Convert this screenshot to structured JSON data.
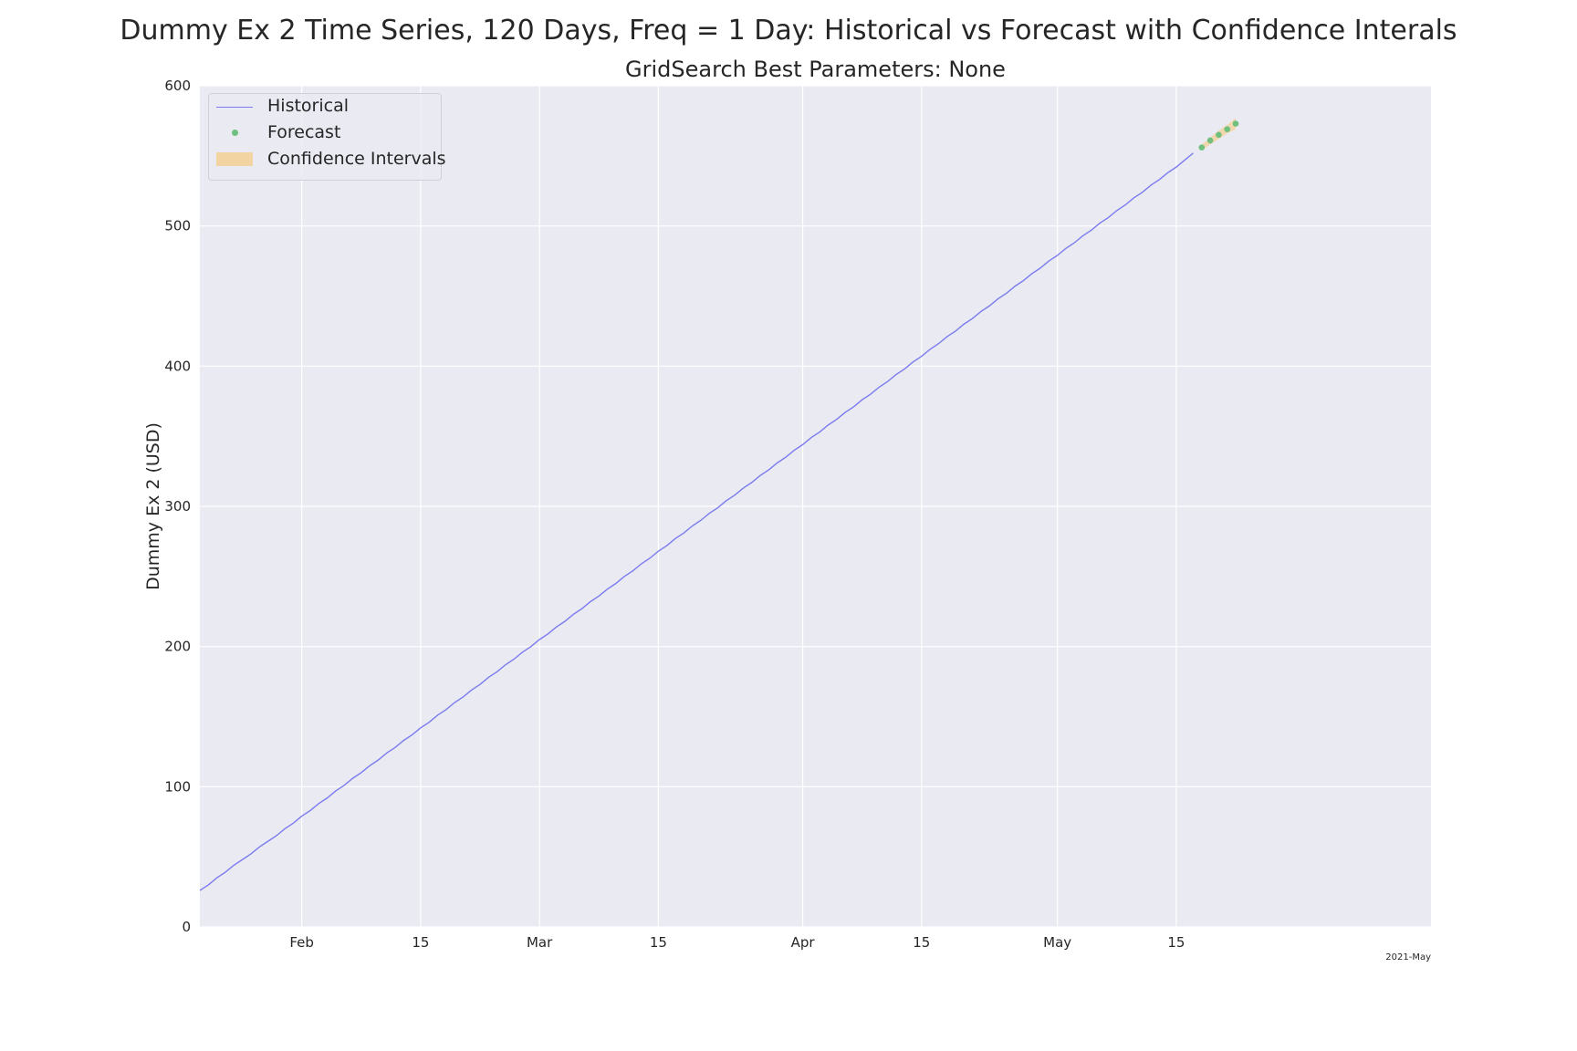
{
  "chart_data": {
    "type": "line",
    "title": "Dummy Ex 2 Time Series, 120 Days, Freq = 1 Day: Historical vs Forecast with Confidence Interals",
    "subtitle": "GridSearch Best Parameters: None",
    "ylabel": "Dummy Ex 2 (USD)",
    "xlabel": "",
    "x_range": [
      "2021-01-20",
      "2021-06-14"
    ],
    "ylim": [
      0,
      600
    ],
    "y_ticks": [
      0,
      100,
      200,
      300,
      400,
      500,
      600
    ],
    "x_ticks": [
      {
        "date": "2021-02-01",
        "label": "Feb"
      },
      {
        "date": "2021-02-15",
        "label": "15"
      },
      {
        "date": "2021-03-01",
        "label": "Mar"
      },
      {
        "date": "2021-03-15",
        "label": "15"
      },
      {
        "date": "2021-04-01",
        "label": "Apr"
      },
      {
        "date": "2021-04-15",
        "label": "15"
      },
      {
        "date": "2021-05-01",
        "label": "May"
      },
      {
        "date": "2021-05-15",
        "label": "15"
      }
    ],
    "x_axis_year_label": "2021-May",
    "grid": true,
    "legend_position": "top-left",
    "series": [
      {
        "name": "Historical",
        "style": "line",
        "color": "#7b7bef",
        "start_date": "2021-01-20",
        "step_days": 1,
        "values": [
          26,
          30,
          35,
          39,
          44,
          48,
          52,
          57,
          61,
          65,
          70,
          74,
          79,
          83,
          88,
          92,
          97,
          101,
          106,
          110,
          115,
          119,
          124,
          128,
          133,
          137,
          142,
          146,
          151,
          155,
          160,
          164,
          169,
          173,
          178,
          182,
          187,
          191,
          196,
          200,
          205,
          209,
          214,
          218,
          223,
          227,
          232,
          236,
          241,
          245,
          250,
          254,
          259,
          263,
          268,
          272,
          277,
          281,
          286,
          290,
          295,
          299,
          304,
          308,
          313,
          317,
          322,
          326,
          331,
          335,
          340,
          344,
          349,
          353,
          358,
          362,
          367,
          371,
          376,
          380,
          385,
          389,
          394,
          398,
          403,
          407,
          412,
          416,
          421,
          425,
          430,
          434,
          439,
          443,
          448,
          452,
          457,
          461,
          466,
          470,
          475,
          479,
          484,
          488,
          493,
          497,
          502,
          506,
          511,
          515,
          520,
          524,
          529,
          533,
          538,
          542,
          547,
          552
        ]
      },
      {
        "name": "Forecast",
        "style": "points",
        "color": "#6fbf7f",
        "points": [
          {
            "date": "2021-05-18",
            "value": 556
          },
          {
            "date": "2021-05-19",
            "value": 561
          },
          {
            "date": "2021-05-20",
            "value": 565
          },
          {
            "date": "2021-05-21",
            "value": 569
          },
          {
            "date": "2021-05-22",
            "value": 573
          }
        ]
      },
      {
        "name": "Confidence Intervals",
        "style": "band",
        "color": "#f2d4a2",
        "points": [
          {
            "date": "2021-05-18",
            "lower": 554,
            "upper": 558
          },
          {
            "date": "2021-05-19",
            "lower": 558,
            "upper": 563
          },
          {
            "date": "2021-05-20",
            "lower": 562,
            "upper": 568
          },
          {
            "date": "2021-05-21",
            "lower": 566,
            "upper": 572
          },
          {
            "date": "2021-05-22",
            "lower": 569,
            "upper": 577
          }
        ]
      }
    ]
  },
  "colors": {
    "plot_background": "#eaeaf2",
    "grid": "#ffffff",
    "historical": "#7b7bef",
    "forecast": "#6fbf7f",
    "confidence": "#f2d4a2"
  }
}
